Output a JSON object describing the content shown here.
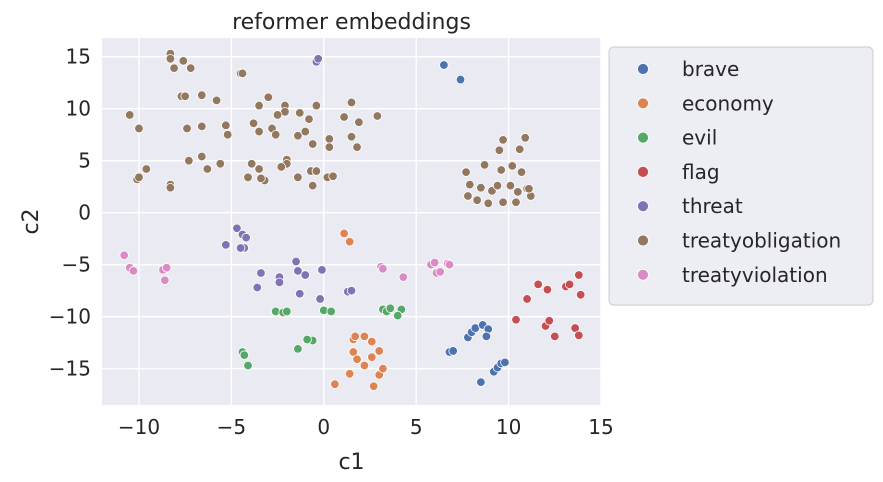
{
  "chart_data": {
    "type": "scatter",
    "title": "reformer embeddings",
    "xlabel": "c1",
    "ylabel": "c2",
    "xlim": [
      -12,
      15
    ],
    "ylim": [
      -18.5,
      16.8
    ],
    "xticks": [
      -10,
      -5,
      0,
      5,
      10,
      15
    ],
    "yticks": [
      -15,
      -10,
      -5,
      0,
      5,
      10,
      15
    ],
    "grid": true,
    "legend": "outside-right",
    "series": [
      {
        "name": "brave",
        "color": "#4c72b0",
        "points": [
          [
            6.5,
            14.2
          ],
          [
            7.4,
            12.8
          ],
          [
            6.8,
            -13.4
          ],
          [
            7.0,
            -13.3
          ],
          [
            7.8,
            -12.0
          ],
          [
            8.0,
            -11.5
          ],
          [
            8.2,
            -11.1
          ],
          [
            8.6,
            -10.8
          ],
          [
            8.9,
            -11.2
          ],
          [
            8.8,
            -11.9
          ],
          [
            9.2,
            -15.3
          ],
          [
            9.4,
            -14.9
          ],
          [
            9.6,
            -14.5
          ],
          [
            9.8,
            -14.4
          ],
          [
            8.5,
            -16.3
          ]
        ]
      },
      {
        "name": "economy",
        "color": "#dd8452",
        "points": [
          [
            1.1,
            -2.0
          ],
          [
            1.4,
            -2.8
          ],
          [
            1.6,
            -12.2
          ],
          [
            1.7,
            -11.9
          ],
          [
            1.6,
            -13.4
          ],
          [
            2.2,
            -11.9
          ],
          [
            2.6,
            -12.4
          ],
          [
            1.8,
            -14.1
          ],
          [
            2.2,
            -14.7
          ],
          [
            2.6,
            -13.9
          ],
          [
            3.0,
            -13.3
          ],
          [
            3.0,
            -15.6
          ],
          [
            3.2,
            -15.0
          ],
          [
            2.7,
            -16.7
          ],
          [
            1.4,
            -15.5
          ],
          [
            0.6,
            -16.5
          ]
        ]
      },
      {
        "name": "evil",
        "color": "#55a868",
        "points": [
          [
            -2.6,
            -9.5
          ],
          [
            -2.2,
            -9.6
          ],
          [
            -2.0,
            -9.5
          ],
          [
            0.0,
            -9.4
          ],
          [
            0.4,
            -9.5
          ],
          [
            3.2,
            -9.3
          ],
          [
            3.4,
            -9.5
          ],
          [
            3.6,
            -9.2
          ],
          [
            4.2,
            -9.3
          ],
          [
            4.0,
            -9.9
          ],
          [
            -0.6,
            -12.3
          ],
          [
            -0.9,
            -12.2
          ],
          [
            -1.4,
            -13.1
          ],
          [
            -4.4,
            -13.4
          ],
          [
            -4.3,
            -13.7
          ],
          [
            -4.1,
            -14.7
          ]
        ]
      },
      {
        "name": "flag",
        "color": "#c44e52",
        "points": [
          [
            10.4,
            -10.3
          ],
          [
            11.0,
            -8.3
          ],
          [
            11.6,
            -6.9
          ],
          [
            12.1,
            -7.4
          ],
          [
            12.0,
            -10.9
          ],
          [
            12.2,
            -10.4
          ],
          [
            12.5,
            -11.9
          ],
          [
            13.1,
            -7.1
          ],
          [
            13.3,
            -6.9
          ],
          [
            13.6,
            -11.1
          ],
          [
            13.8,
            -11.8
          ],
          [
            13.8,
            -6.0
          ],
          [
            13.9,
            -7.9
          ]
        ]
      },
      {
        "name": "threat",
        "color": "#8172b3",
        "points": [
          [
            -0.4,
            14.5
          ],
          [
            -0.3,
            14.8
          ],
          [
            -4.7,
            -1.5
          ],
          [
            -5.3,
            -3.1
          ],
          [
            -4.4,
            -2.1
          ],
          [
            -4.2,
            -2.4
          ],
          [
            -4.3,
            -3.4
          ],
          [
            -4.5,
            -3.4
          ],
          [
            -3.4,
            -5.8
          ],
          [
            -2.4,
            -6.2
          ],
          [
            -2.4,
            -6.7
          ],
          [
            -3.6,
            -7.2
          ],
          [
            -1.5,
            -4.7
          ],
          [
            -1.4,
            -5.6
          ],
          [
            -1.0,
            -6.0
          ],
          [
            -0.1,
            -5.5
          ],
          [
            -1.3,
            -7.8
          ],
          [
            -0.2,
            -8.3
          ],
          [
            1.3,
            -7.6
          ],
          [
            1.5,
            -7.5
          ]
        ]
      },
      {
        "name": "treatyobligation",
        "color": "#937860",
        "points": [
          [
            -8.3,
            15.3
          ],
          [
            -8.3,
            14.8
          ],
          [
            -7.6,
            14.6
          ],
          [
            -7.2,
            13.9
          ],
          [
            -8.1,
            13.9
          ],
          [
            -4.5,
            13.4
          ],
          [
            -4.4,
            13.4
          ],
          [
            -10.5,
            9.4
          ],
          [
            -10.0,
            8.1
          ],
          [
            -7.7,
            11.2
          ],
          [
            -7.5,
            11.2
          ],
          [
            -6.6,
            11.3
          ],
          [
            -5.8,
            10.8
          ],
          [
            -7.4,
            8.1
          ],
          [
            -6.6,
            8.3
          ],
          [
            -5.3,
            8.4
          ],
          [
            -5.2,
            7.5
          ],
          [
            -3.5,
            10.3
          ],
          [
            -3.0,
            11.1
          ],
          [
            -2.1,
            10.3
          ],
          [
            -2.1,
            9.7
          ],
          [
            -2.5,
            9.4
          ],
          [
            -1.3,
            9.6
          ],
          [
            -0.8,
            9.0
          ],
          [
            -0.4,
            10.3
          ],
          [
            -3.8,
            8.6
          ],
          [
            -3.5,
            7.8
          ],
          [
            -2.8,
            8.1
          ],
          [
            -2.6,
            7.5
          ],
          [
            -1.4,
            7.4
          ],
          [
            -1.0,
            7.8
          ],
          [
            -0.6,
            6.6
          ],
          [
            1.1,
            9.2
          ],
          [
            1.5,
            10.6
          ],
          [
            1.9,
            8.7
          ],
          [
            2.9,
            9.3
          ],
          [
            0.3,
            7.1
          ],
          [
            0.3,
            6.3
          ],
          [
            1.5,
            7.3
          ],
          [
            1.8,
            6.3
          ],
          [
            -9.6,
            4.2
          ],
          [
            -10.1,
            3.2
          ],
          [
            -10.0,
            3.4
          ],
          [
            -7.3,
            5.0
          ],
          [
            -6.6,
            5.4
          ],
          [
            -6.3,
            4.2
          ],
          [
            -5.6,
            4.7
          ],
          [
            -3.9,
            4.7
          ],
          [
            -3.5,
            4.2
          ],
          [
            -3.2,
            3.1
          ],
          [
            -3.4,
            3.3
          ],
          [
            -4.1,
            3.4
          ],
          [
            -2.0,
            5.1
          ],
          [
            -2.0,
            4.7
          ],
          [
            -2.3,
            4.4
          ],
          [
            -1.4,
            3.4
          ],
          [
            -0.7,
            4.0
          ],
          [
            -0.4,
            4.0
          ],
          [
            0.2,
            3.4
          ],
          [
            0.5,
            3.5
          ],
          [
            -0.6,
            2.6
          ],
          [
            -8.3,
            2.7
          ],
          [
            -8.3,
            2.4
          ],
          [
            9.7,
            7.0
          ],
          [
            9.5,
            6.0
          ],
          [
            10.9,
            7.2
          ],
          [
            10.6,
            6.1
          ],
          [
            7.7,
            3.9
          ],
          [
            8.7,
            4.6
          ],
          [
            9.6,
            4.1
          ],
          [
            10.2,
            4.5
          ],
          [
            10.7,
            3.9
          ],
          [
            7.9,
            2.7
          ],
          [
            8.5,
            2.4
          ],
          [
            9.1,
            2.1
          ],
          [
            9.4,
            2.6
          ],
          [
            10.1,
            2.6
          ],
          [
            10.5,
            2.0
          ],
          [
            11.0,
            2.3
          ],
          [
            11.2,
            1.6
          ],
          [
            7.8,
            1.6
          ],
          [
            8.3,
            1.2
          ],
          [
            8.9,
            0.9
          ],
          [
            9.7,
            1.0
          ],
          [
            10.4,
            1.0
          ],
          [
            11.1,
            2.3
          ]
        ]
      },
      {
        "name": "treatyviolation",
        "color": "#da8bc3",
        "points": [
          [
            -10.8,
            -4.1
          ],
          [
            -10.5,
            -5.3
          ],
          [
            -10.3,
            -5.6
          ],
          [
            -8.7,
            -5.5
          ],
          [
            -8.5,
            -5.3
          ],
          [
            -8.6,
            -6.5
          ],
          [
            3.1,
            -5.2
          ],
          [
            3.2,
            -5.4
          ],
          [
            4.3,
            -6.2
          ],
          [
            5.8,
            -5.0
          ],
          [
            6.0,
            -4.8
          ],
          [
            6.1,
            -5.8
          ],
          [
            6.3,
            -5.7
          ],
          [
            6.7,
            -4.9
          ],
          [
            6.8,
            -5.0
          ]
        ]
      }
    ]
  }
}
